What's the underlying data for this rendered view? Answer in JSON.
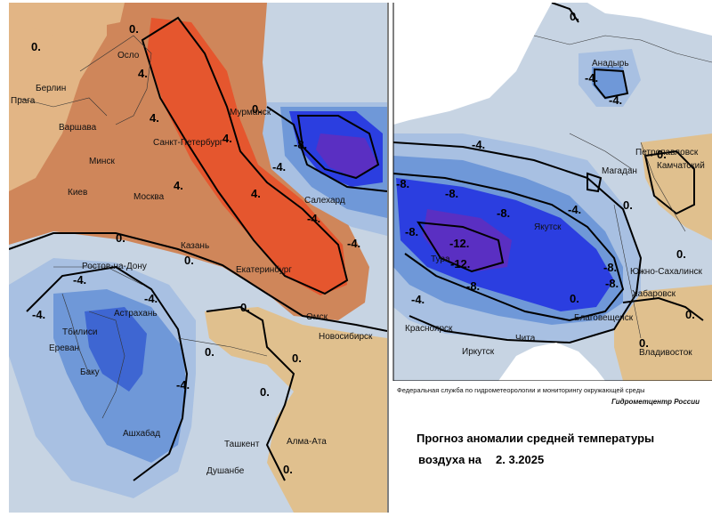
{
  "colors": {
    "strong_warm": "#e5562e",
    "warm": "#cf865a",
    "mild_warm": "#e2b585",
    "sand": "#e0c08e",
    "neutral": "#c7d4e3",
    "cool_light": "#a8c0e2",
    "cool": "#6f98d8",
    "cold": "#3e66d2",
    "very_cold": "#2b3ee0",
    "extreme_cold": "#5a2fc2",
    "background": "#ffffff"
  },
  "left_map": {
    "cities": [
      {
        "name": "Осло"
      },
      {
        "name": "Берлин"
      },
      {
        "name": "Прага"
      },
      {
        "name": "Варшава"
      },
      {
        "name": "Минск"
      },
      {
        "name": "Киев"
      },
      {
        "name": "Москва"
      },
      {
        "name": "Санкт-Петербург"
      },
      {
        "name": "Мурманск"
      },
      {
        "name": "Салехард"
      },
      {
        "name": "Казань"
      },
      {
        "name": "Екатеринбург"
      },
      {
        "name": "Ростов-на-Дону"
      },
      {
        "name": "Астрахань"
      },
      {
        "name": "Тбилиси"
      },
      {
        "name": "Ереван"
      },
      {
        "name": "Баку"
      },
      {
        "name": "Омск"
      },
      {
        "name": "Новосибирск"
      },
      {
        "name": "Ашхабад"
      },
      {
        "name": "Ташкент"
      },
      {
        "name": "Алма-Ата"
      },
      {
        "name": "Душанбе"
      }
    ],
    "isoline_labels": [
      "0.",
      "0.",
      "4.",
      "4.",
      "4.",
      "4.",
      "4.",
      "0.",
      "-4.",
      "-8.",
      "-4.",
      "-4.",
      "0.",
      "-4.",
      "-4.",
      "-4.",
      "0.",
      "0.",
      "0.",
      "0.",
      "-4.",
      "0.",
      "0."
    ]
  },
  "right_map": {
    "cities": [
      {
        "name": "Тура"
      },
      {
        "name": "Анадырь"
      },
      {
        "name": "Петропавловск"
      },
      {
        "name": "Камчатский"
      },
      {
        "name": "Магадан"
      },
      {
        "name": "Якутск"
      },
      {
        "name": "Южно-Сахалинск"
      },
      {
        "name": "Хабаровск"
      },
      {
        "name": "Благовещенск"
      },
      {
        "name": "Красноярск"
      },
      {
        "name": "Иркутск"
      },
      {
        "name": "Чита"
      },
      {
        "name": "Владивосток"
      }
    ],
    "isoline_labels": [
      "0.",
      "-4.",
      "-4.",
      "-4.",
      "-8.",
      "-8.",
      "-8.",
      "-12.",
      "-12.",
      "-8.",
      "-8.",
      "-8.",
      "-4.",
      "0.",
      "0.",
      "0.",
      "-4.",
      "-8.",
      "0.",
      "0.",
      "0."
    ]
  },
  "caption": {
    "organization": "Федеральная служба по гидрометеорологии и мониторингу окружающей среды",
    "brand": "Гидрометцентр России",
    "title_line1": "Прогноз аномалии средней температуры",
    "title_line2": "воздуха на",
    "date": "2. 3.2025"
  }
}
